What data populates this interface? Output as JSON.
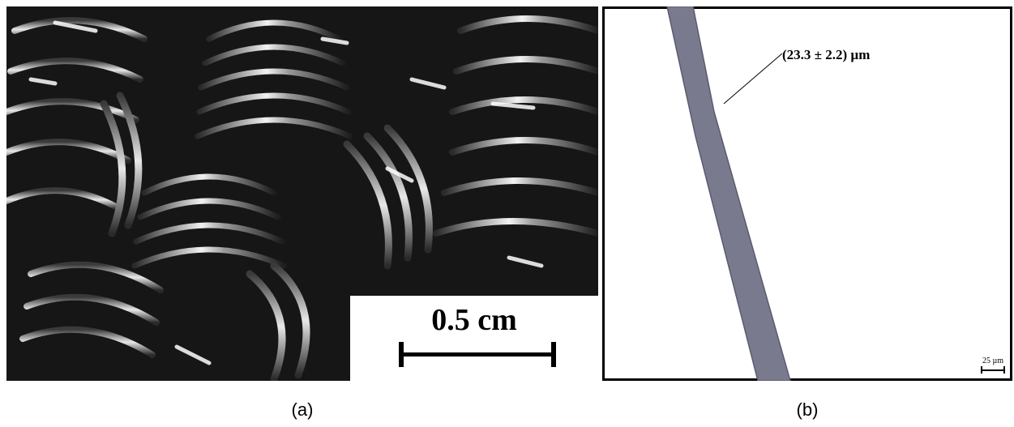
{
  "panel_a": {
    "scale_label": "0.5 cm",
    "caption": "(a)"
  },
  "panel_b": {
    "measurement_label": "(23.3 ± 2.2) µm",
    "scale_label": "25 µm",
    "caption": "(b)",
    "fiber_color": "#7a7a8e"
  }
}
